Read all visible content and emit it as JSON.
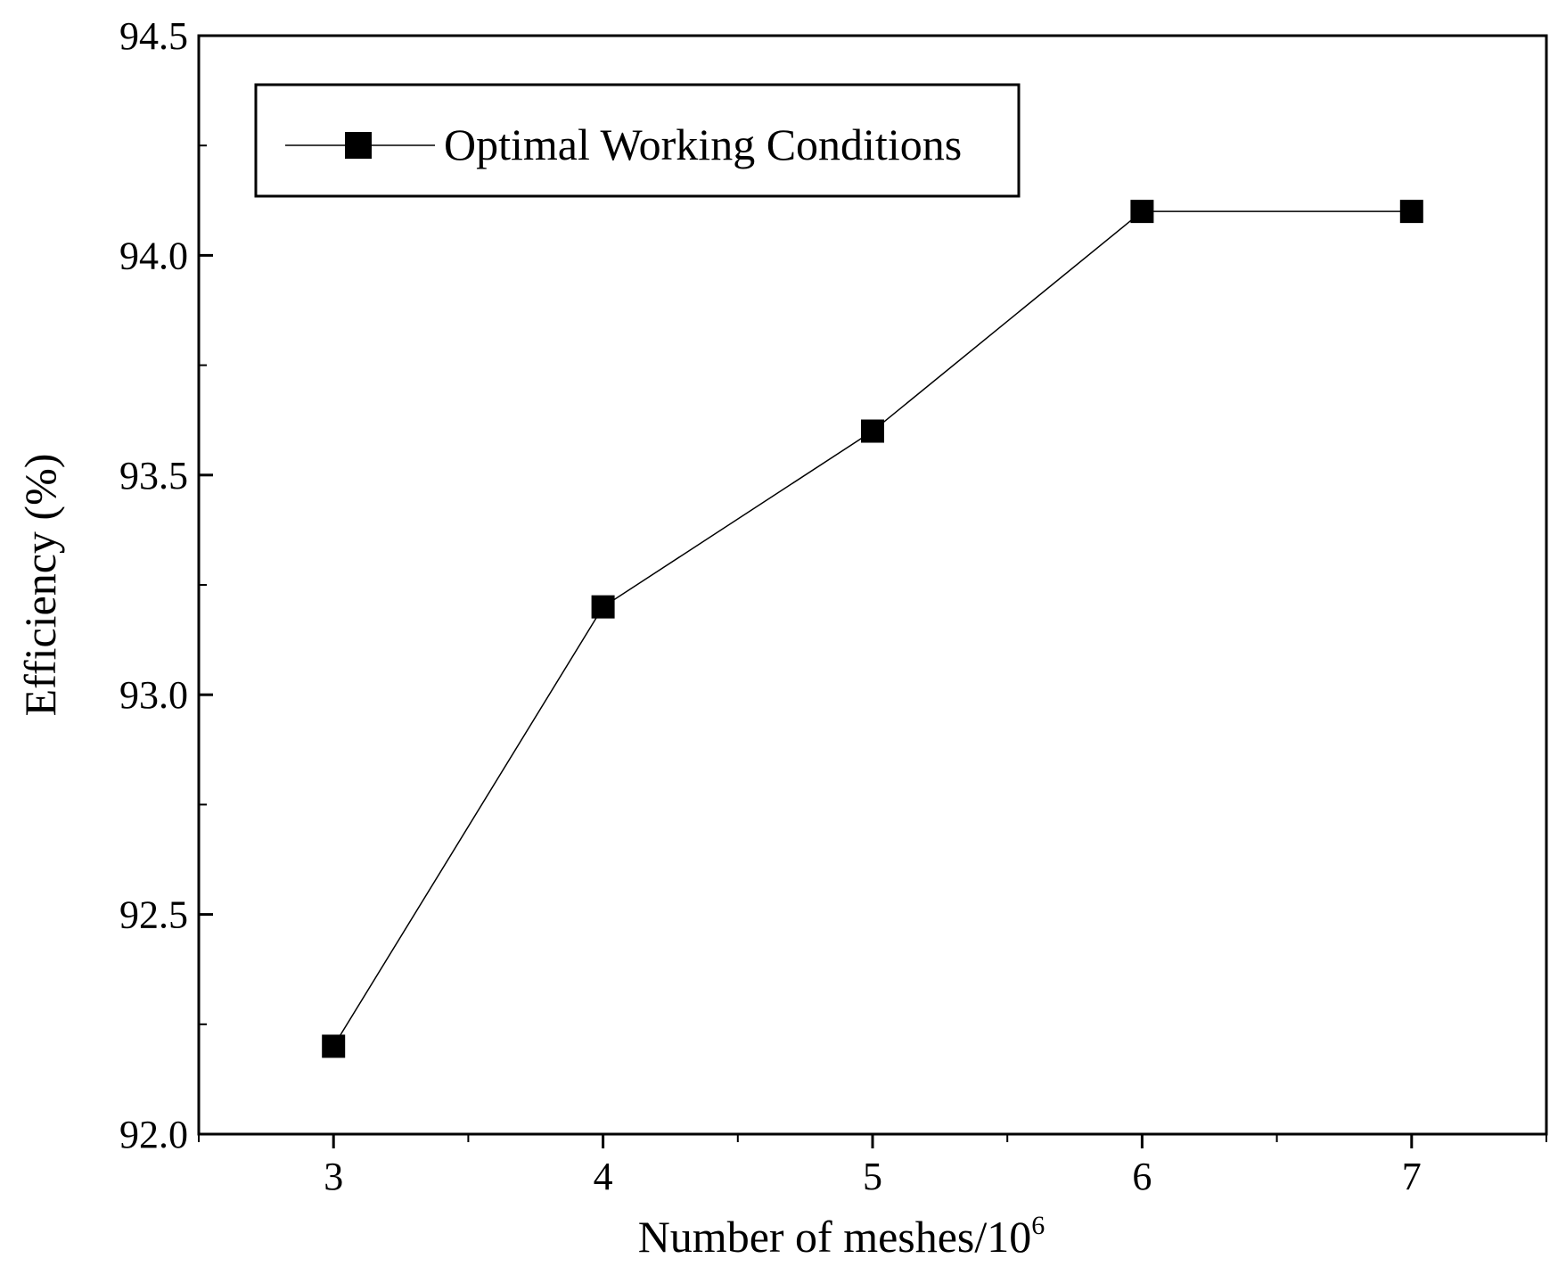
{
  "chart_data": {
    "type": "line",
    "title": "",
    "xlabel": "Number of meshes/10",
    "xlabel_superscript": "6",
    "ylabel": "Efficiency (%)",
    "xlim": [
      2.5,
      7.5
    ],
    "ylim": [
      92.0,
      94.5
    ],
    "x_ticks": [
      "3",
      "4",
      "5",
      "6",
      "7"
    ],
    "y_ticks": [
      "92.0",
      "92.5",
      "93.0",
      "93.5",
      "94.0",
      "94.5"
    ],
    "grid": false,
    "legend_position": "top-left",
    "series": [
      {
        "name": "Optimal Working Conditions",
        "marker": "square",
        "color": "#000000",
        "x": [
          3,
          4,
          5,
          6,
          7
        ],
        "y": [
          92.2,
          93.2,
          93.6,
          94.1,
          94.1
        ]
      }
    ]
  }
}
